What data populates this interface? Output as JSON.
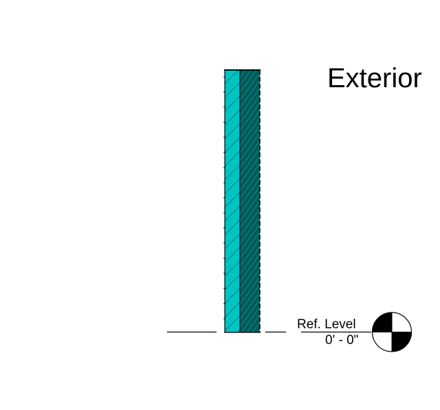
{
  "view": {
    "side_label": "Exterior"
  },
  "level": {
    "name": "Ref. Level",
    "elevation": "0' - 0\"",
    "symbol_icon": "level-datum-target-icon"
  },
  "wall": {
    "layers": [
      {
        "name": "exterior-finish-layer",
        "color": "#00c4c4"
      },
      {
        "name": "structure-layer",
        "color": "#005a5a"
      }
    ],
    "outline_color": "#000000"
  },
  "colors": {
    "line": "#000000",
    "background": "#ffffff"
  }
}
